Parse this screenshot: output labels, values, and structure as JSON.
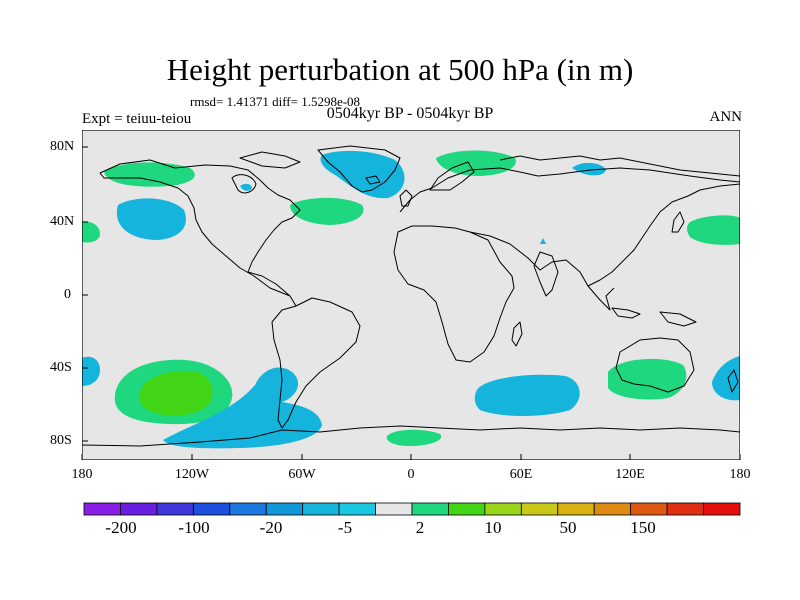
{
  "title": "Height perturbation at 500 hPa (in m)",
  "stats": "rmsd= 1.41371 diff= 1.5298e-08",
  "subtitle": "0504kyr BP - 0504kyr BP",
  "experiment": "Expt = teiuu-teiou",
  "season": "ANN",
  "axes": {
    "x_ticks": [
      "180",
      "120W",
      "60W",
      "0",
      "60E",
      "120E",
      "180"
    ],
    "y_ticks": [
      "80N",
      "40N",
      "0",
      "40S",
      "80S"
    ]
  },
  "colorbar": {
    "labels": [
      "-200",
      "-100",
      "-20",
      "-5",
      "2",
      "10",
      "50",
      "150"
    ],
    "colors": [
      "#8a1ee6",
      "#6a1fe0",
      "#3f37dc",
      "#1b4fdc",
      "#1a78e0",
      "#1196d8",
      "#14b4dc",
      "#18c8e0",
      "#e6e6e6",
      "#1fd77e",
      "#42d516",
      "#9bd51a",
      "#c9c814",
      "#d6b212",
      "#de8a12",
      "#de5a12",
      "#e02e14",
      "#e60f0f"
    ]
  },
  "field_colors": {
    "ocean": "#e6e6e6",
    "positive_weak": "#1fd77e",
    "positive_mid": "#42d516",
    "negative_weak": "#14b4dc"
  }
}
